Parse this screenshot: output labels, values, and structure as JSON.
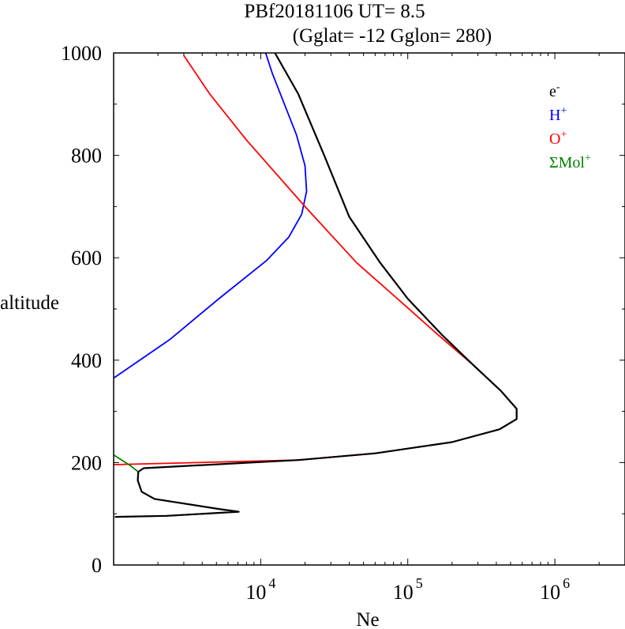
{
  "chart_data": {
    "type": "line",
    "title_line1": "PBf20181106   UT=  8.5",
    "title_line2": "(Gglat= -12   Gglon=  280)",
    "xlabel": "Ne",
    "ylabel": "altitude",
    "x_scale": "log",
    "xlim": [
      1000,
      3000000
    ],
    "ylim": [
      0,
      1000
    ],
    "x_ticks": [
      {
        "value": 10000,
        "base": "10",
        "exp": "4"
      },
      {
        "value": 100000,
        "base": "10",
        "exp": "5"
      },
      {
        "value": 1000000,
        "base": "10",
        "exp": "6"
      }
    ],
    "y_ticks": [
      {
        "value": 0,
        "label": "0"
      },
      {
        "value": 200,
        "label": "200"
      },
      {
        "value": 400,
        "label": "400"
      },
      {
        "value": 600,
        "label": "600"
      },
      {
        "value": 800,
        "label": "800"
      },
      {
        "value": 1000,
        "label": "1000"
      }
    ],
    "legend_position": "top-right",
    "series": [
      {
        "name": "e",
        "sup": "-",
        "color": "#000000",
        "points": [
          [
            1020,
            94
          ],
          [
            2300,
            96
          ],
          [
            7100,
            104
          ],
          [
            5300,
            109
          ],
          [
            1900,
            129
          ],
          [
            1550,
            143
          ],
          [
            1460,
            165
          ],
          [
            1470,
            182
          ],
          [
            1600,
            189
          ],
          [
            18000,
            205
          ],
          [
            60000,
            218
          ],
          [
            200000,
            240
          ],
          [
            420000,
            265
          ],
          [
            550000,
            285
          ],
          [
            550000,
            305
          ],
          [
            430000,
            340
          ],
          [
            280000,
            390
          ],
          [
            170000,
            450
          ],
          [
            100000,
            520
          ],
          [
            65000,
            590
          ],
          [
            40000,
            680
          ],
          [
            27000,
            800
          ],
          [
            18000,
            920
          ],
          [
            12500,
            1000
          ]
        ]
      },
      {
        "name": "H",
        "sup": "+",
        "color": "#0000ff",
        "points": [
          [
            1000,
            365
          ],
          [
            2400,
            440
          ],
          [
            5200,
            520
          ],
          [
            11000,
            595
          ],
          [
            15500,
            640
          ],
          [
            19000,
            685
          ],
          [
            20500,
            730
          ],
          [
            20000,
            780
          ],
          [
            17500,
            840
          ],
          [
            14500,
            900
          ],
          [
            12000,
            960
          ],
          [
            10800,
            1000
          ]
        ]
      },
      {
        "name": "O",
        "sup": "+",
        "color": "#ff0000",
        "points": [
          [
            1000,
            196
          ],
          [
            18000,
            205
          ],
          [
            60000,
            218
          ],
          [
            200000,
            240
          ],
          [
            420000,
            265
          ],
          [
            550000,
            285
          ],
          [
            550000,
            305
          ],
          [
            430000,
            340
          ],
          [
            280000,
            390
          ],
          [
            160000,
            450
          ],
          [
            85000,
            520
          ],
          [
            45000,
            590
          ],
          [
            20000,
            700
          ],
          [
            8000,
            830
          ],
          [
            4500,
            920
          ],
          [
            3000,
            995
          ]
        ]
      },
      {
        "name": "ΣMol",
        "sup": "+",
        "color": "#008000",
        "points": [
          [
            1000,
            215
          ],
          [
            1300,
            194
          ],
          [
            1470,
            182
          ],
          [
            1460,
            165
          ],
          [
            1550,
            143
          ],
          [
            1900,
            129
          ],
          [
            5300,
            109
          ],
          [
            7100,
            104
          ],
          [
            2300,
            96
          ],
          [
            1020,
            94
          ]
        ]
      }
    ]
  }
}
